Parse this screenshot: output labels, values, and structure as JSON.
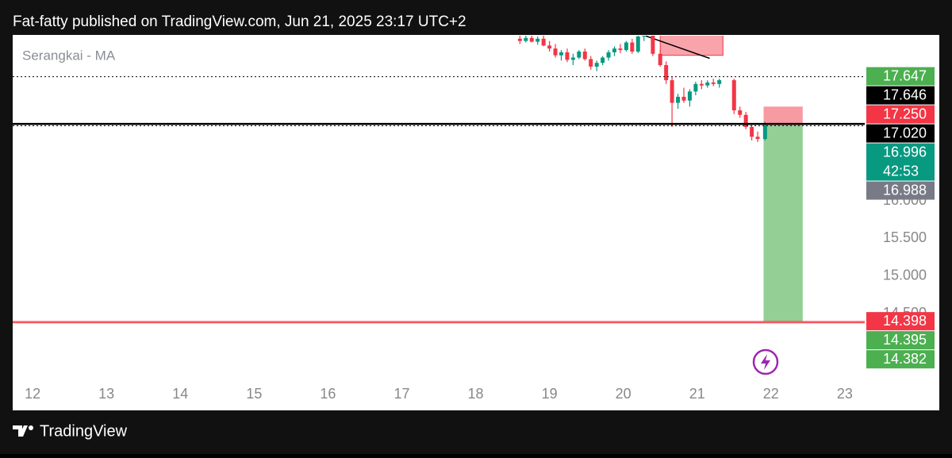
{
  "chart_data": {
    "type": "candlestick",
    "title": "Fat-fatty published on TradingView.com, Jun 21, 2025 23:17 UTC+2",
    "indicator": "Serangkai - MA",
    "brand": "TradingView",
    "up_color": "#089981",
    "down_color": "#f23645",
    "xlim": [
      11.73,
      23.27
    ],
    "xticks": [
      12,
      13,
      14,
      15,
      16,
      17,
      18,
      19,
      20,
      21,
      22,
      23
    ],
    "ylim": [
      13.61,
      18.19
    ],
    "yticks": [
      {
        "value": 16,
        "label": "16.000"
      },
      {
        "value": 15.5,
        "label": "15.500"
      },
      {
        "value": 15,
        "label": "15.000"
      },
      {
        "value": 14.5,
        "label": "14.500"
      }
    ],
    "candles": {
      "x": [
        18.6,
        18.68,
        18.76,
        18.84,
        18.92,
        19.0,
        19.08,
        19.16,
        19.24,
        19.32,
        19.4,
        19.48,
        19.56,
        19.64,
        19.72,
        19.8,
        19.88,
        19.96,
        20.04,
        20.12,
        20.2,
        20.28,
        20.4,
        20.5,
        20.58,
        20.66,
        20.74,
        20.82,
        20.9,
        20.98,
        21.06,
        21.14,
        21.22,
        21.3,
        21.5,
        21.58,
        21.66,
        21.74,
        21.82,
        21.92
      ],
      "open": [
        18.15,
        18.12,
        18.16,
        18.11,
        18.15,
        18.06,
        18.02,
        17.93,
        17.97,
        17.87,
        17.9,
        17.98,
        17.88,
        17.78,
        17.83,
        17.9,
        17.97,
        18.02,
        18.0,
        18.1,
        17.98,
        18.18,
        18.2,
        17.95,
        17.8,
        17.6,
        17.3,
        17.38,
        17.33,
        17.45,
        17.55,
        17.53,
        17.57,
        17.55,
        17.6,
        17.2,
        17.14,
        16.98,
        16.85,
        16.82
      ],
      "high": [
        18.2,
        18.19,
        18.2,
        18.18,
        18.19,
        18.12,
        18.08,
        18.0,
        18.02,
        17.95,
        18.0,
        18.02,
        17.92,
        17.86,
        17.92,
        18.0,
        18.05,
        18.08,
        18.12,
        18.15,
        18.2,
        18.24,
        18.22,
        18.0,
        17.85,
        17.64,
        17.42,
        17.5,
        17.48,
        17.58,
        17.6,
        17.6,
        17.62,
        17.62,
        17.62,
        17.25,
        17.18,
        17.0,
        16.92,
        17.05
      ],
      "low": [
        18.08,
        18.1,
        18.1,
        18.07,
        18.05,
        17.98,
        17.9,
        17.86,
        17.84,
        17.8,
        17.88,
        17.86,
        17.74,
        17.72,
        17.8,
        17.86,
        17.92,
        17.96,
        17.98,
        17.95,
        17.96,
        18.12,
        17.92,
        17.78,
        17.55,
        16.98,
        17.22,
        17.3,
        17.25,
        17.4,
        17.48,
        17.5,
        17.52,
        17.5,
        17.15,
        17.1,
        16.95,
        16.8,
        16.78,
        16.8
      ],
      "close": [
        18.12,
        18.16,
        18.11,
        18.15,
        18.06,
        18.02,
        17.93,
        17.97,
        17.87,
        17.9,
        17.98,
        17.88,
        17.78,
        17.83,
        17.9,
        17.97,
        18.02,
        18.0,
        18.1,
        17.98,
        18.18,
        18.2,
        17.95,
        17.8,
        17.6,
        17.3,
        17.38,
        17.33,
        17.45,
        17.55,
        17.53,
        17.57,
        17.55,
        17.6,
        17.2,
        17.14,
        16.98,
        16.85,
        16.82,
        17.0
      ]
    },
    "price_lines": [
      {
        "value": 17.647,
        "label": "17.647",
        "color": "#4caf50",
        "line": "dotted"
      },
      {
        "value": 17.646,
        "label": "17.646",
        "color": "#000000"
      },
      {
        "value": 17.25,
        "label": "17.250",
        "color": "#f23645"
      },
      {
        "value": 17.02,
        "label": "17.020",
        "color": "#000000",
        "line": "solid"
      },
      {
        "value": 16.996,
        "label": "16.996",
        "color": "#089981",
        "line": "dotted",
        "countdown": "42:53"
      },
      {
        "value": 16.988,
        "label": "16.988",
        "color": "#787b86"
      },
      {
        "value": 14.398,
        "label": "14.398",
        "color": "#f23645",
        "line": "red"
      },
      {
        "value": 14.395,
        "label": "14.395",
        "color": "#4caf50"
      },
      {
        "value": 14.382,
        "label": "14.382",
        "color": "#4caf50",
        "line": "red"
      }
    ],
    "position": {
      "x": [
        21.9,
        22.43
      ],
      "entry": 16.996,
      "stop": 17.25,
      "target": 14.398
    },
    "zone": {
      "x": [
        20.5,
        21.35
      ],
      "y": [
        17.93,
        18.22
      ]
    },
    "trendline": {
      "x": [
        20.15,
        21.17
      ],
      "y": [
        18.24,
        17.89
      ]
    }
  }
}
